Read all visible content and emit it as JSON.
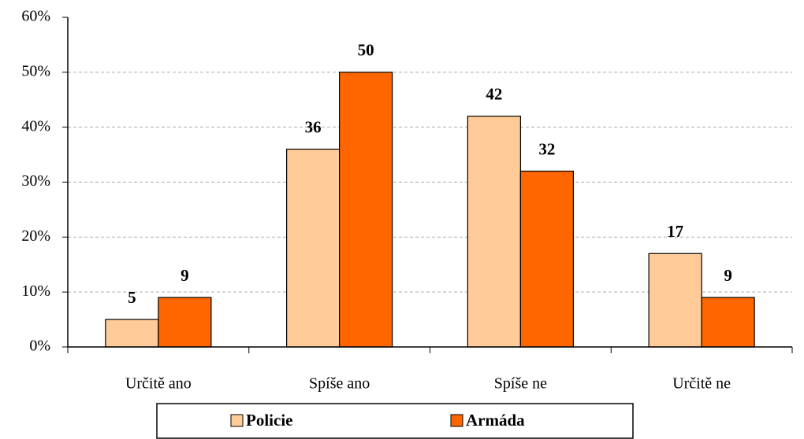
{
  "chart_data": {
    "type": "bar",
    "categories": [
      "Určitě ano",
      "Spíše ano",
      "Spíše ne",
      "Určitě ne"
    ],
    "series": [
      {
        "name": "Policie",
        "color": "#FFCC99",
        "values": [
          5,
          36,
          42,
          17
        ]
      },
      {
        "name": "Armáda",
        "color": "#FF6600",
        "values": [
          9,
          50,
          32,
          9
        ]
      }
    ],
    "ylim": [
      0,
      60
    ],
    "yticks": [
      {
        "value": 0,
        "label": "0%"
      },
      {
        "value": 10,
        "label": "10%"
      },
      {
        "value": 20,
        "label": "20%"
      },
      {
        "value": 30,
        "label": "30%"
      },
      {
        "value": 40,
        "label": "40%"
      },
      {
        "value": 50,
        "label": "50%"
      },
      {
        "value": 60,
        "label": "60%"
      }
    ],
    "grid": true,
    "legend": "bottom"
  }
}
